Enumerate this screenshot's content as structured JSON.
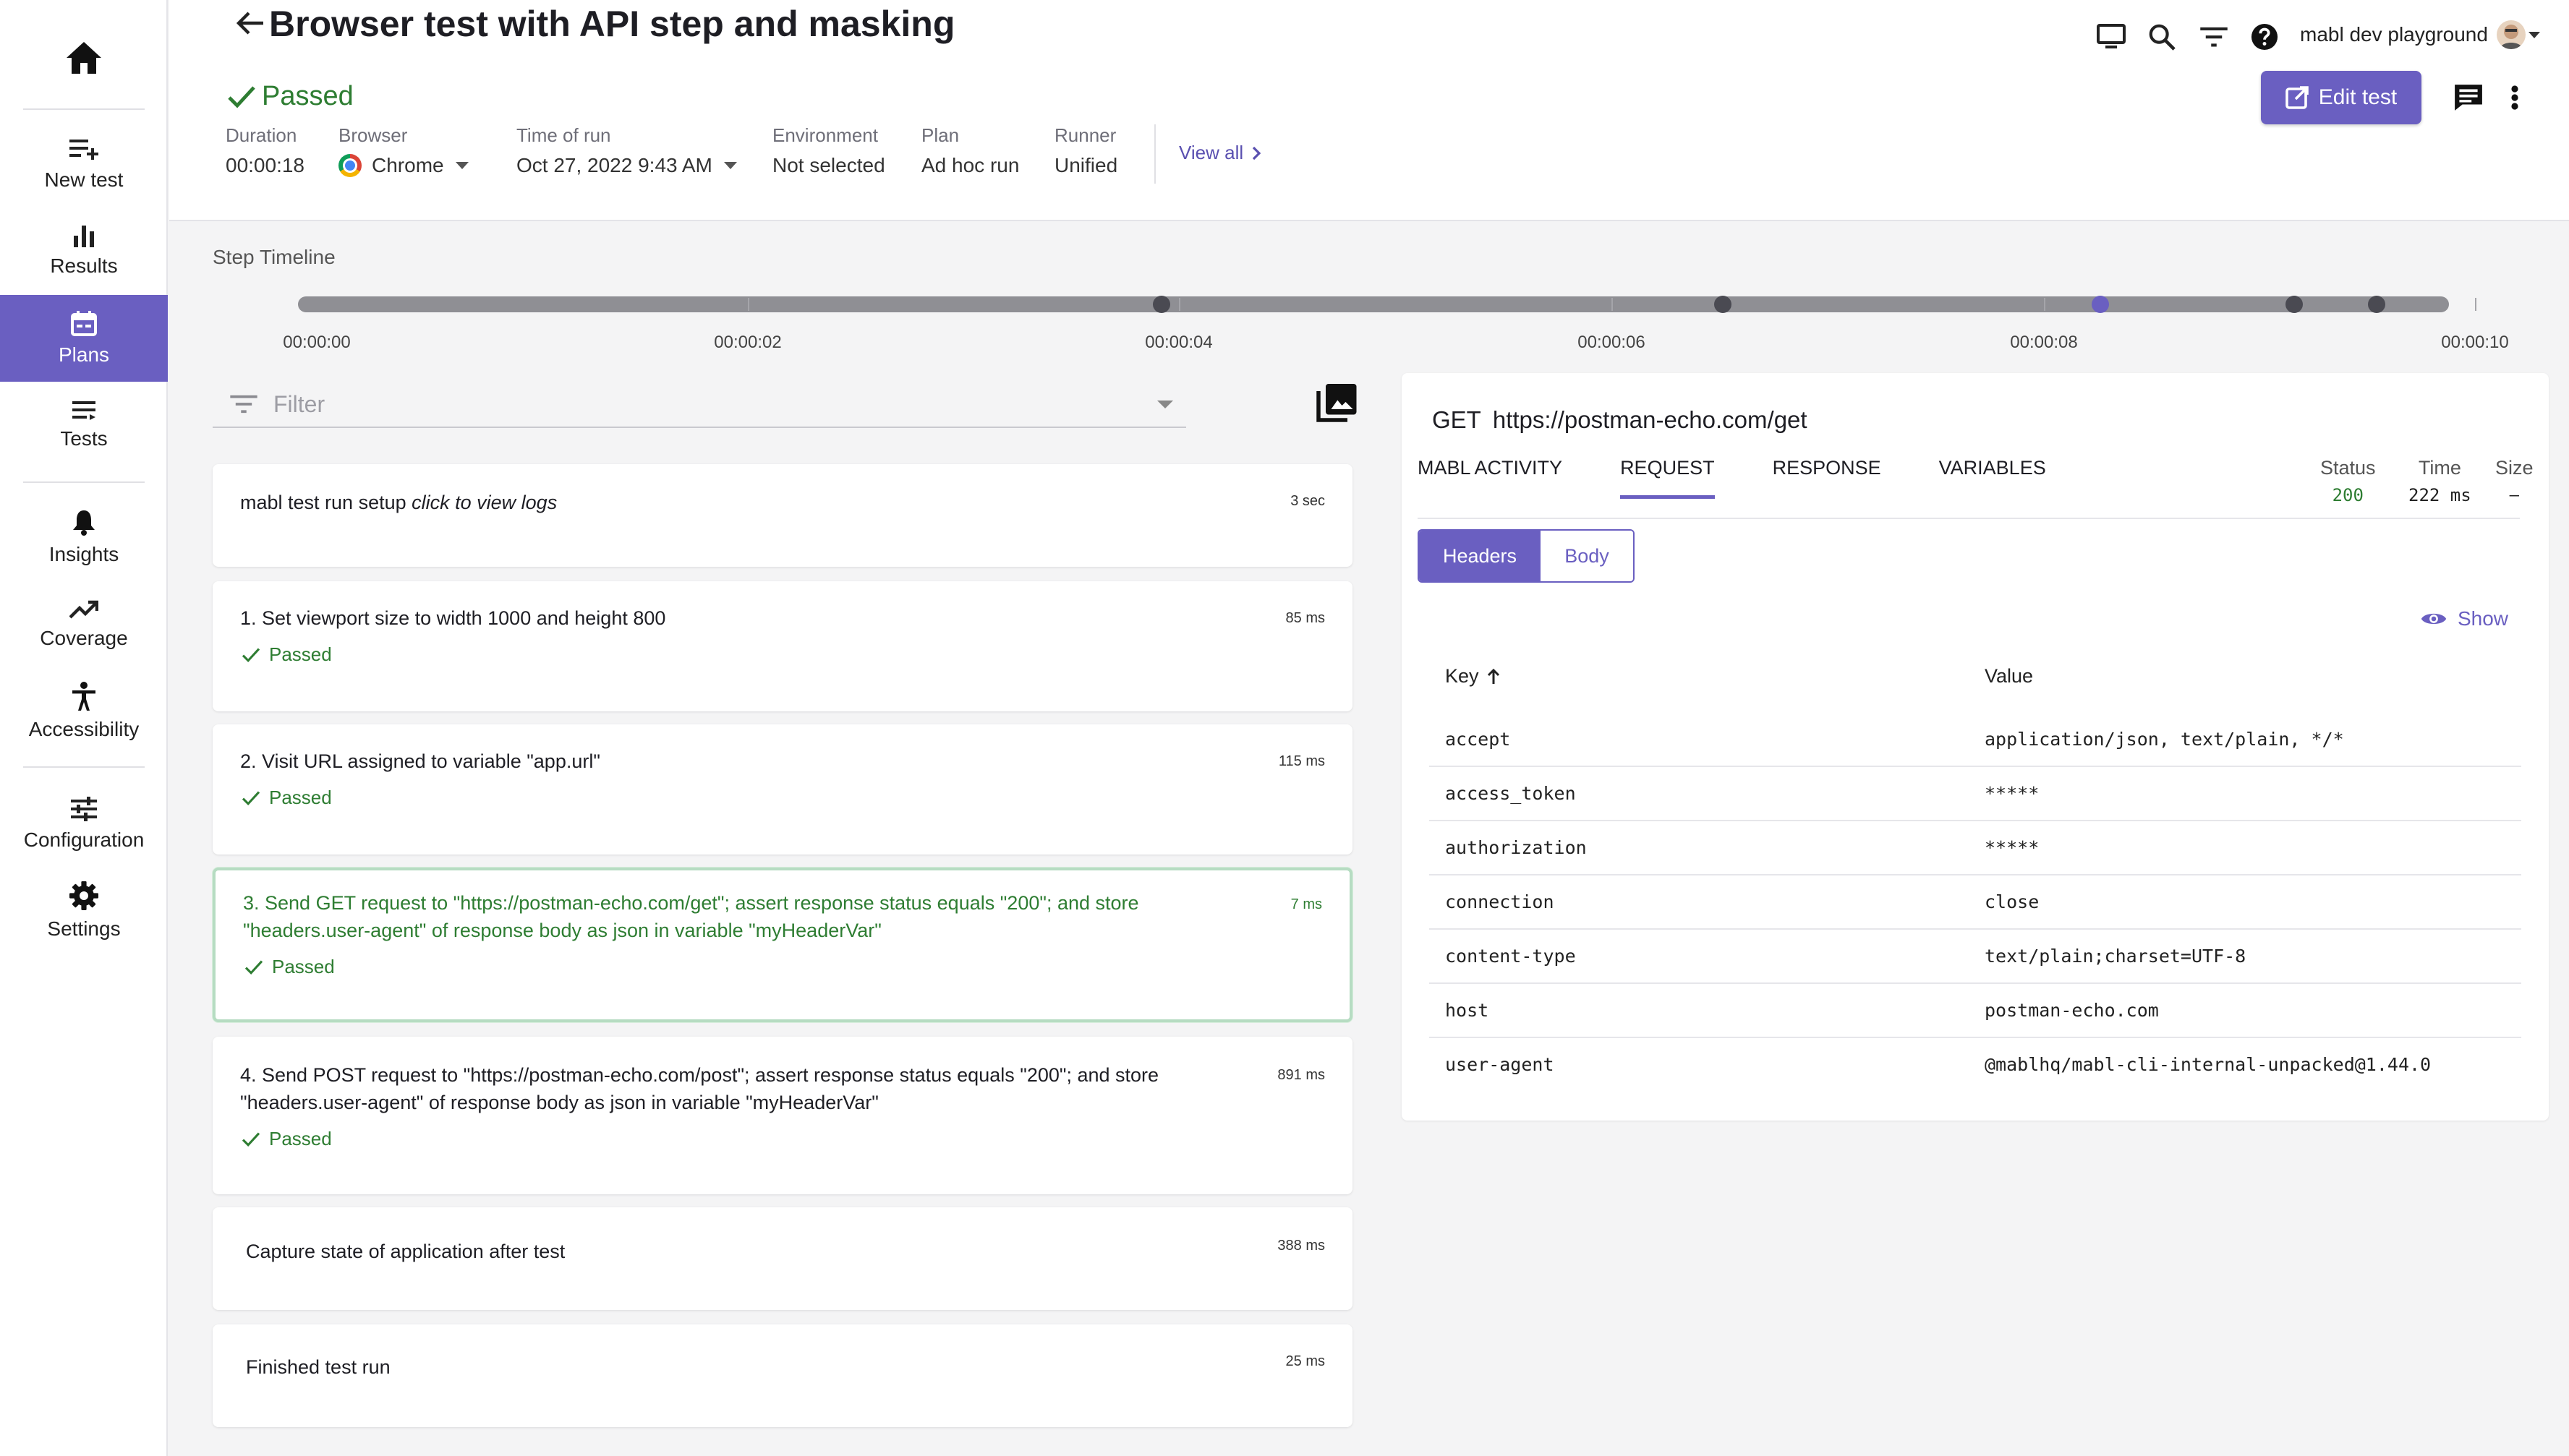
{
  "sidebar": {
    "home_icon": "home-icon",
    "items": [
      {
        "label": "New test",
        "icon": "new-test-icon"
      },
      {
        "label": "Results",
        "icon": "bar-chart-icon"
      },
      {
        "label": "Plans",
        "icon": "calendar-icon",
        "active": true
      },
      {
        "label": "Tests",
        "icon": "list-icon"
      },
      {
        "label": "Insights",
        "icon": "bell-icon"
      },
      {
        "label": "Coverage",
        "icon": "trend-icon"
      },
      {
        "label": "Accessibility",
        "icon": "accessibility-icon"
      },
      {
        "label": "Configuration",
        "icon": "sliders-icon"
      },
      {
        "label": "Settings",
        "icon": "gear-icon"
      }
    ]
  },
  "header": {
    "title": "Browser test with API step and masking",
    "status": "Passed",
    "meta": {
      "duration_label": "Duration",
      "duration_value": "00:00:18",
      "browser_label": "Browser",
      "browser_value": "Chrome",
      "time_label": "Time of run",
      "time_value": "Oct 27, 2022 9:43 AM",
      "env_label": "Environment",
      "env_value": "Not selected",
      "plan_label": "Plan",
      "plan_value": "Ad hoc run",
      "runner_label": "Runner",
      "runner_value": "Unified"
    },
    "view_all": "View all",
    "org_name": "mabl dev playground",
    "edit_test": "Edit test"
  },
  "timeline": {
    "title": "Step Timeline",
    "ticks": [
      "00:00:00",
      "00:00:02",
      "00:00:04",
      "00:00:06",
      "00:00:08",
      "00:00:10"
    ]
  },
  "filter": {
    "placeholder": "Filter"
  },
  "steps": [
    {
      "title_plain": "mabl test run setup ",
      "title_em": "click to view logs",
      "duration": "3 sec"
    },
    {
      "title": "1. Set viewport size to width 1000 and height 800",
      "status": "Passed",
      "duration": "85 ms"
    },
    {
      "title": "2. Visit URL assigned to variable \"app.url\"",
      "status": "Passed",
      "duration": "115 ms"
    },
    {
      "title": "3. Send GET request to \"https://postman-echo.com/get\"; assert response status equals \"200\"; and store \"headers.user-agent\" of response body as json in variable \"myHeaderVar\"",
      "status": "Passed",
      "duration": "7 ms",
      "selected": true
    },
    {
      "title": "4. Send POST request to \"https://postman-echo.com/post\"; assert response status equals \"200\"; and store \"headers.user-agent\" of response body as json in variable \"myHeaderVar\"",
      "status": "Passed",
      "duration": "891 ms"
    },
    {
      "title": "Capture state of application after test",
      "duration": "388 ms"
    },
    {
      "title": "Finished test run",
      "duration": "25 ms"
    }
  ],
  "request": {
    "method": "GET",
    "url": "https://postman-echo.com/get",
    "tabs": [
      "MABL ACTIVITY",
      "REQUEST",
      "RESPONSE",
      "VARIABLES"
    ],
    "active_tab": "REQUEST",
    "status_label": "Status",
    "status_value": "200",
    "time_label": "Time",
    "time_value": "222 ms",
    "size_label": "Size",
    "size_value": "–",
    "seg_headers": "Headers",
    "seg_body": "Body",
    "show": "Show",
    "col_key": "Key",
    "col_value": "Value",
    "rows": [
      {
        "key": "accept",
        "value": "application/json, text/plain, */*"
      },
      {
        "key": "access_token",
        "value": "*****"
      },
      {
        "key": "authorization",
        "value": "*****"
      },
      {
        "key": "connection",
        "value": "close"
      },
      {
        "key": "content-type",
        "value": "text/plain;charset=UTF-8"
      },
      {
        "key": "host",
        "value": "postman-echo.com"
      },
      {
        "key": "user-agent",
        "value": "@mablhq/mabl-cli-internal-unpacked@1.44.0"
      }
    ]
  },
  "colors": {
    "accent": "#6a5fc1",
    "pass": "#2e7d32",
    "selected_border": "#b6dcc2"
  }
}
